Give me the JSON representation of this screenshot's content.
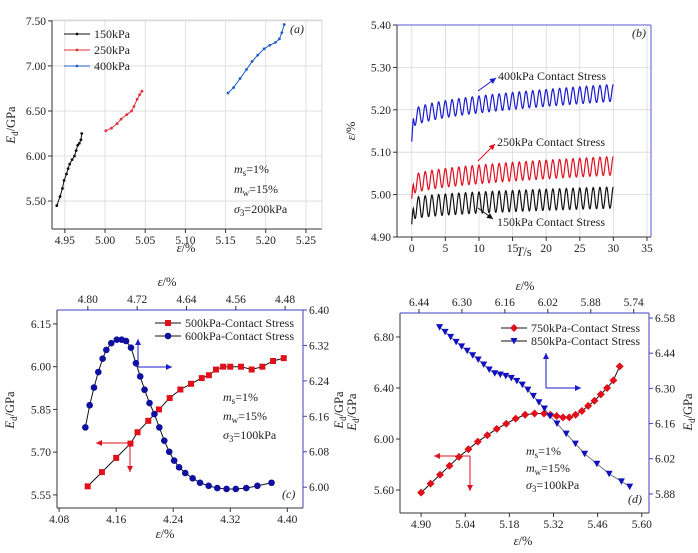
{
  "chart_data": [
    {
      "panel": "(a)",
      "type": "line",
      "xlabel": {
        "main": "ε",
        "unit": "/%"
      },
      "ylabel": {
        "main": "E",
        "sub": "d",
        "unit": "/GPa"
      },
      "xlim": [
        4.934,
        5.27
      ],
      "ylim": [
        5.19,
        7.51
      ],
      "xticks": [
        "4.95",
        "5.00",
        "5.05",
        "5.10",
        "5.15",
        "5.20",
        "5.25"
      ],
      "yticks": [
        "5.50",
        "6.00",
        "6.50",
        "7.00",
        "7.50"
      ],
      "grid": true,
      "legend_position": "top-left",
      "annotations": [
        {
          "v": "m",
          "sub": "s",
          "val": "=1%"
        },
        {
          "v": "m",
          "sub": "w",
          "val": "=15%"
        },
        {
          "v": "σ",
          "sub": "3",
          "val": "=200kPa"
        }
      ],
      "series": [
        {
          "name": "150kPa",
          "color": "#111111",
          "marker": "dot",
          "axis": "primary",
          "x": [
            4.94,
            4.944,
            4.947,
            4.949,
            4.952,
            4.954,
            4.956,
            4.959,
            4.962,
            4.964,
            4.966,
            4.968,
            4.97,
            4.971
          ],
          "y": [
            5.45,
            5.55,
            5.64,
            5.73,
            5.8,
            5.86,
            5.91,
            5.96,
            6.0,
            6.06,
            6.12,
            6.14,
            6.18,
            6.25
          ]
        },
        {
          "name": "250kPa",
          "color": "#e0303a",
          "marker": "dot",
          "axis": "primary",
          "x": [
            5.001,
            5.008,
            5.015,
            5.02,
            5.027,
            5.033,
            5.036,
            5.04,
            5.043,
            5.046
          ],
          "y": [
            6.28,
            6.31,
            6.36,
            6.41,
            6.46,
            6.5,
            6.55,
            6.63,
            6.68,
            6.72
          ]
        },
        {
          "name": "400kPa",
          "color": "#1f5fc8",
          "marker": "dot",
          "axis": "primary",
          "x": [
            5.153,
            5.16,
            5.168,
            5.176,
            5.183,
            5.19,
            5.198,
            5.205,
            5.212,
            5.217,
            5.22,
            5.223
          ],
          "y": [
            6.7,
            6.76,
            6.86,
            6.96,
            7.05,
            7.12,
            7.19,
            7.23,
            7.26,
            7.3,
            7.37,
            7.46
          ]
        }
      ]
    },
    {
      "panel": "(b)",
      "type": "line",
      "xlabel": {
        "main": "T",
        "unit": "/s"
      },
      "ylabel": {
        "main": "ε",
        "unit": "/%"
      },
      "xlim": [
        -2.2,
        35.6
      ],
      "ylim": [
        4.9,
        5.4
      ],
      "xticks": [
        "0",
        "5",
        "10",
        "15",
        "20",
        "25",
        "30",
        "35"
      ],
      "yticks": [
        "4.90",
        "5.00",
        "5.10",
        "5.20",
        "5.30",
        "5.40"
      ],
      "grid": true,
      "series": [
        {
          "name": "400kPa Contact Stress",
          "color": "#1a1ad0",
          "initial": 5.125,
          "mean_start": 5.175,
          "mean_end": 5.24,
          "amplitude": 0.02,
          "period_s": 1.0,
          "t_end": 30
        },
        {
          "name": "250kPa Contact Stress",
          "color": "#e01020",
          "initial": 4.99,
          "mean_start": 5.02,
          "mean_end": 5.068,
          "amplitude": 0.022,
          "period_s": 1.0,
          "t_end": 30
        },
        {
          "name": "150kPa Contact Stress",
          "color": "#111111",
          "initial": 4.93,
          "mean_start": 4.965,
          "mean_end": 4.993,
          "amplitude": 0.025,
          "period_s": 1.0,
          "t_end": 30
        }
      ]
    },
    {
      "panel": "(c)",
      "type": "line",
      "xlabel": {
        "main": "ε",
        "unit": "/%"
      },
      "x2label": {
        "main": "ε",
        "unit": "/%"
      },
      "ylabel": {
        "main": "E",
        "sub": "d",
        "unit": "/GPa"
      },
      "y2label": {
        "main": "E",
        "sub": "d",
        "unit": "/GPa"
      },
      "xlim": [
        4.077,
        4.422
      ],
      "x2lim": [
        4.85,
        4.451
      ],
      "ylim": [
        5.504,
        6.199
      ],
      "y2lim": [
        5.953,
        6.4
      ],
      "xticks": [
        "4.08",
        "4.16",
        "4.24",
        "4.32",
        "4.40"
      ],
      "x2ticks": [
        "4.80",
        "4.72",
        "4.64",
        "4.56",
        "4.48"
      ],
      "yticks": [
        "5.55",
        "5.70",
        "5.85",
        "6.00",
        "6.15"
      ],
      "y2ticks": [
        "6.00",
        "6.08",
        "6.16",
        "6.24",
        "6.32",
        "6.40"
      ],
      "grid": false,
      "legend_position": "top-right",
      "annotations": [
        {
          "v": "m",
          "sub": "s",
          "val": "=1%"
        },
        {
          "v": "m",
          "sub": "w",
          "val": "=15%"
        },
        {
          "v": "σ",
          "sub": "3",
          "val": "=100kPa"
        }
      ],
      "series": [
        {
          "name": "500kPa-Contact Stress",
          "color": "#e0101a",
          "marker": "square",
          "axis": "primary",
          "x": [
            4.12,
            4.14,
            4.16,
            4.18,
            4.19,
            4.205,
            4.22,
            4.235,
            4.25,
            4.265,
            4.28,
            4.29,
            4.3,
            4.31,
            4.32,
            4.335,
            4.35,
            4.365,
            4.38,
            4.395
          ],
          "y": [
            5.58,
            5.63,
            5.68,
            5.73,
            5.77,
            5.81,
            5.85,
            5.89,
            5.92,
            5.94,
            5.96,
            5.97,
            5.99,
            6.0,
            6.0,
            6.0,
            5.99,
            6.0,
            6.02,
            6.03
          ]
        },
        {
          "name": "600kPa-Contact Stress",
          "color": "#1010a0",
          "marker": "circle",
          "axis": "secondary",
          "x": [
            4.804,
            4.797,
            4.79,
            4.783,
            4.776,
            4.77,
            4.762,
            4.753,
            4.745,
            4.738,
            4.73,
            4.722,
            4.715,
            4.708,
            4.7,
            4.692,
            4.684,
            4.676,
            4.668,
            4.66,
            4.652,
            4.642,
            4.63,
            4.618,
            4.604,
            4.59,
            4.575,
            4.56,
            4.543,
            4.525,
            4.502
          ],
          "y": [
            6.135,
            6.185,
            6.225,
            6.26,
            6.29,
            6.31,
            6.325,
            6.333,
            6.333,
            6.33,
            6.315,
            6.28,
            6.25,
            6.22,
            6.19,
            6.165,
            6.135,
            6.105,
            6.08,
            6.06,
            6.045,
            6.032,
            6.02,
            6.01,
            6.003,
            5.998,
            5.996,
            5.996,
            5.998,
            6.003,
            6.01
          ]
        }
      ]
    },
    {
      "panel": "(d)",
      "type": "line",
      "xlabel": {
        "main": "ε",
        "unit": "/%"
      },
      "x2label": {
        "main": "ε",
        "unit": "/%"
      },
      "ylabel": {
        "main": "E",
        "sub": "d",
        "unit": "/GPa"
      },
      "y2label": {
        "main": "E",
        "sub": "d",
        "unit": "/GPa"
      },
      "xlim": [
        4.833,
        5.623
      ],
      "x2lim": [
        6.502,
        5.69
      ],
      "ylim": [
        5.42,
        6.988
      ],
      "y2lim": [
        5.804,
        6.6
      ],
      "xticks": [
        "4.90",
        "5.04",
        "5.18",
        "5.32",
        "5.46",
        "5.60"
      ],
      "x2ticks": [
        "6.44",
        "6.30",
        "6.16",
        "6.02",
        "5.88",
        "5.74"
      ],
      "yticks": [
        "5.60",
        "6.00",
        "6.40",
        "6.80"
      ],
      "y2ticks": [
        "5.88",
        "6.02",
        "6.16",
        "6.30",
        "6.44",
        "6.58"
      ],
      "grid": false,
      "legend_position": "top-right",
      "annotations": [
        {
          "v": "m",
          "sub": "s",
          "val": "=1%"
        },
        {
          "v": "m",
          "sub": "w",
          "val": "=15%"
        },
        {
          "v": "σ",
          "sub": "3",
          "val": "=100kPa"
        }
      ],
      "series": [
        {
          "name": "750kPa-Contact Stress",
          "color": "#e0101a",
          "marker": "diamond",
          "axis": "primary",
          "x": [
            4.9,
            4.93,
            4.96,
            4.99,
            5.02,
            5.05,
            5.08,
            5.11,
            5.14,
            5.17,
            5.2,
            5.23,
            5.26,
            5.29,
            5.31,
            5.33,
            5.35,
            5.37,
            5.39,
            5.41,
            5.43,
            5.45,
            5.47,
            5.49,
            5.51,
            5.53
          ],
          "y": [
            5.58,
            5.65,
            5.72,
            5.79,
            5.86,
            5.92,
            5.98,
            6.03,
            6.08,
            6.12,
            6.16,
            6.19,
            6.2,
            6.2,
            6.19,
            6.18,
            6.17,
            6.17,
            6.19,
            6.22,
            6.26,
            6.3,
            6.35,
            6.4,
            6.46,
            6.57
          ]
        },
        {
          "name": "850kPa-Contact Stress",
          "color": "#1010c0",
          "marker": "triangle-down",
          "axis": "secondary",
          "x": [
            6.373,
            6.355,
            6.337,
            6.319,
            6.301,
            6.283,
            6.265,
            6.247,
            6.229,
            6.211,
            6.193,
            6.175,
            6.157,
            6.139,
            6.121,
            6.103,
            6.085,
            6.067,
            6.049,
            6.031,
            6.013,
            5.99,
            5.96,
            5.93,
            5.9,
            5.86,
            5.82,
            5.78,
            5.753
          ],
          "y": [
            6.544,
            6.525,
            6.505,
            6.485,
            6.467,
            6.45,
            6.432,
            6.415,
            6.395,
            6.375,
            6.36,
            6.355,
            6.35,
            6.342,
            6.33,
            6.315,
            6.295,
            6.27,
            6.245,
            6.22,
            6.19,
            6.16,
            6.12,
            6.08,
            6.04,
            6.0,
            5.96,
            5.93,
            5.909
          ]
        }
      ]
    }
  ]
}
